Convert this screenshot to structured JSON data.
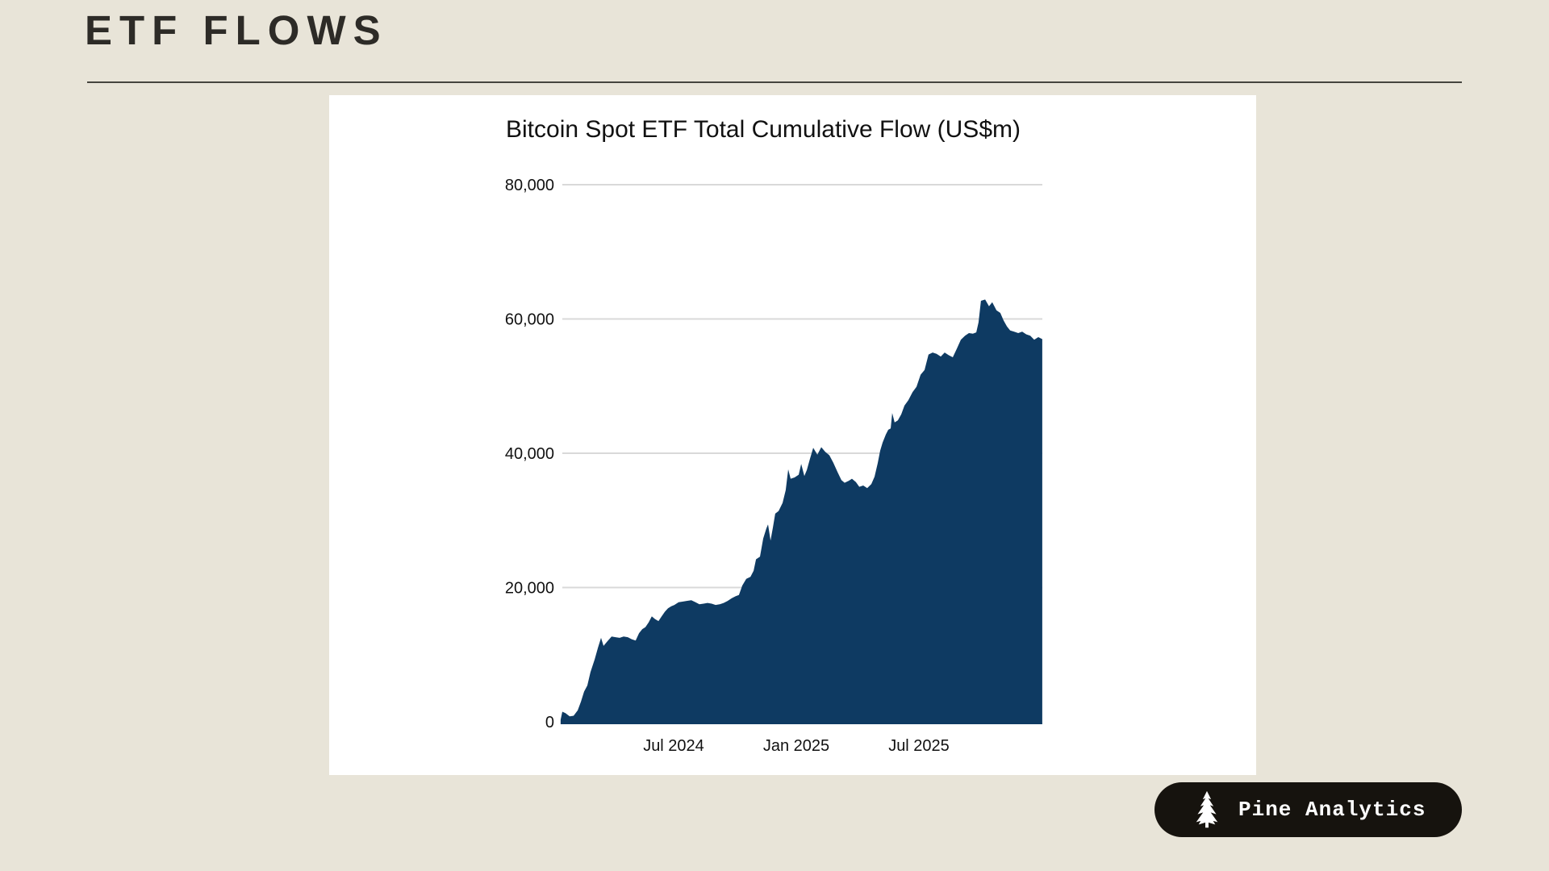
{
  "header": {
    "title": "ETF FLOWS"
  },
  "badge": {
    "label": "Pine Analytics",
    "icon": "pine-tree-icon",
    "bg_color": "#16130e",
    "text_color": "#ffffff"
  },
  "colors": {
    "page_background": "#e8e4d8",
    "card_background": "#ffffff",
    "area_fill": "#0e3a62",
    "gridline": "#d9d9d9",
    "heading_text": "#2d2b27"
  },
  "chart_data": {
    "type": "area",
    "title": "Bitcoin Spot ETF Total Cumulative Flow (US$m)",
    "xlabel": "",
    "ylabel": "",
    "ylim": [
      0,
      80000
    ],
    "xlim": [
      2024.04,
      2026.01
    ],
    "x_unit": "decimal_year",
    "grid": "horizontal",
    "legend": "none",
    "y_ticks": [
      0,
      20000,
      40000,
      60000,
      80000
    ],
    "y_tick_labels": [
      "0",
      "20,000",
      "40,000",
      "60,000",
      "80,000"
    ],
    "x_ticks": [
      "Jul 2024",
      "Jan 2025",
      "Jul 2025"
    ],
    "x_tick_positions": [
      2024.5,
      2025.0,
      2025.5
    ],
    "series": [
      {
        "name": "Bitcoin Spot ETF Total Cumulative Flow (US$m)",
        "color": "#0e3a62",
        "points": [
          [
            2024.039,
            300
          ],
          [
            2024.046,
            1500
          ],
          [
            2024.059,
            1300
          ],
          [
            2024.076,
            800
          ],
          [
            2024.092,
            900
          ],
          [
            2024.109,
            1700
          ],
          [
            2024.122,
            3000
          ],
          [
            2024.135,
            4500
          ],
          [
            2024.148,
            5400
          ],
          [
            2024.161,
            7400
          ],
          [
            2024.178,
            9300
          ],
          [
            2024.191,
            11000
          ],
          [
            2024.204,
            12500
          ],
          [
            2024.214,
            11300
          ],
          [
            2024.23,
            12000
          ],
          [
            2024.247,
            12700
          ],
          [
            2024.263,
            12600
          ],
          [
            2024.28,
            12500
          ],
          [
            2024.296,
            12700
          ],
          [
            2024.313,
            12600
          ],
          [
            2024.329,
            12300
          ],
          [
            2024.345,
            12100
          ],
          [
            2024.359,
            13200
          ],
          [
            2024.372,
            13800
          ],
          [
            2024.385,
            14100
          ],
          [
            2024.398,
            14800
          ],
          [
            2024.411,
            15700
          ],
          [
            2024.424,
            15300
          ],
          [
            2024.438,
            15000
          ],
          [
            2024.451,
            15700
          ],
          [
            2024.464,
            16400
          ],
          [
            2024.477,
            16900
          ],
          [
            2024.49,
            17200
          ],
          [
            2024.503,
            17400
          ],
          [
            2024.52,
            17800
          ],
          [
            2024.536,
            17900
          ],
          [
            2024.553,
            18000
          ],
          [
            2024.572,
            18100
          ],
          [
            2024.589,
            17800
          ],
          [
            2024.605,
            17500
          ],
          [
            2024.622,
            17600
          ],
          [
            2024.638,
            17700
          ],
          [
            2024.655,
            17600
          ],
          [
            2024.671,
            17400
          ],
          [
            2024.688,
            17500
          ],
          [
            2024.704,
            17700
          ],
          [
            2024.72,
            18000
          ],
          [
            2024.737,
            18400
          ],
          [
            2024.753,
            18700
          ],
          [
            2024.766,
            18900
          ],
          [
            2024.78,
            20300
          ],
          [
            2024.796,
            21300
          ],
          [
            2024.813,
            21600
          ],
          [
            2024.826,
            22500
          ],
          [
            2024.836,
            24200
          ],
          [
            2024.852,
            24600
          ],
          [
            2024.865,
            27300
          ],
          [
            2024.878,
            28800
          ],
          [
            2024.885,
            29400
          ],
          [
            2024.895,
            27000
          ],
          [
            2024.905,
            29000
          ],
          [
            2024.914,
            31000
          ],
          [
            2024.928,
            31400
          ],
          [
            2024.944,
            32600
          ],
          [
            2024.957,
            34500
          ],
          [
            2024.967,
            37600
          ],
          [
            2024.977,
            36200
          ],
          [
            2024.993,
            36400
          ],
          [
            2025.01,
            36800
          ],
          [
            2025.02,
            38400
          ],
          [
            2025.033,
            36600
          ],
          [
            2025.043,
            37500
          ],
          [
            2025.056,
            39200
          ],
          [
            2025.069,
            40800
          ],
          [
            2025.086,
            39800
          ],
          [
            2025.102,
            40900
          ],
          [
            2025.118,
            40200
          ],
          [
            2025.135,
            39700
          ],
          [
            2025.151,
            38600
          ],
          [
            2025.168,
            37200
          ],
          [
            2025.184,
            36000
          ],
          [
            2025.197,
            35600
          ],
          [
            2025.214,
            35900
          ],
          [
            2025.227,
            36200
          ],
          [
            2025.243,
            35700
          ],
          [
            2025.257,
            35000
          ],
          [
            2025.273,
            35200
          ],
          [
            2025.289,
            34800
          ],
          [
            2025.306,
            35400
          ],
          [
            2025.319,
            36500
          ],
          [
            2025.332,
            38500
          ],
          [
            2025.342,
            40400
          ],
          [
            2025.352,
            41600
          ],
          [
            2025.365,
            42800
          ],
          [
            2025.375,
            43500
          ],
          [
            2025.385,
            43700
          ],
          [
            2025.391,
            46000
          ],
          [
            2025.401,
            44600
          ],
          [
            2025.414,
            44900
          ],
          [
            2025.428,
            45800
          ],
          [
            2025.441,
            47100
          ],
          [
            2025.457,
            47900
          ],
          [
            2025.474,
            49100
          ],
          [
            2025.49,
            49900
          ],
          [
            2025.507,
            51700
          ],
          [
            2025.523,
            52400
          ],
          [
            2025.539,
            54700
          ],
          [
            2025.556,
            55000
          ],
          [
            2025.572,
            54800
          ],
          [
            2025.589,
            54400
          ],
          [
            2025.605,
            55000
          ],
          [
            2025.622,
            54600
          ],
          [
            2025.638,
            54300
          ],
          [
            2025.655,
            55600
          ],
          [
            2025.671,
            56900
          ],
          [
            2025.688,
            57500
          ],
          [
            2025.704,
            57900
          ],
          [
            2025.72,
            57800
          ],
          [
            2025.734,
            58000
          ],
          [
            2025.743,
            59500
          ],
          [
            2025.753,
            62700
          ],
          [
            2025.77,
            62900
          ],
          [
            2025.786,
            61900
          ],
          [
            2025.799,
            62500
          ],
          [
            2025.816,
            61300
          ],
          [
            2025.832,
            60900
          ],
          [
            2025.845,
            59800
          ],
          [
            2025.859,
            58900
          ],
          [
            2025.872,
            58300
          ],
          [
            2025.888,
            58100
          ],
          [
            2025.905,
            57900
          ],
          [
            2025.921,
            58100
          ],
          [
            2025.938,
            57700
          ],
          [
            2025.954,
            57500
          ],
          [
            2025.97,
            56900
          ],
          [
            2025.987,
            57300
          ],
          [
            2026.003,
            57000
          ]
        ]
      }
    ]
  }
}
